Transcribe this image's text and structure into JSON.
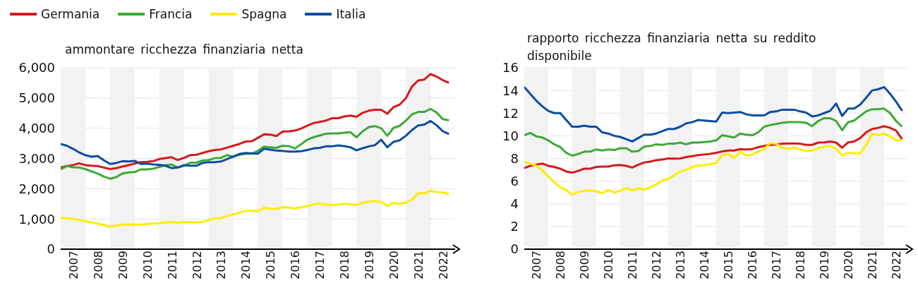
{
  "chart_data": [
    {
      "type": "line",
      "title": "ammontare ricchezza finanziaria netta",
      "legend": "top",
      "grid": "y",
      "x": [
        "2007-01",
        "2007-04",
        "2007-07",
        "2007-10",
        "2008-01",
        "2008-04",
        "2008-07",
        "2008-10",
        "2009-01",
        "2009-04",
        "2009-07",
        "2009-10",
        "2010-01",
        "2010-04",
        "2010-07",
        "2010-10",
        "2011-01",
        "2011-04",
        "2011-07",
        "2011-10",
        "2012-01",
        "2012-04",
        "2012-07",
        "2012-10",
        "2013-01",
        "2013-04",
        "2013-07",
        "2013-10",
        "2014-01",
        "2014-04",
        "2014-07",
        "2014-10",
        "2015-01",
        "2015-04",
        "2015-07",
        "2015-10",
        "2016-01",
        "2016-04",
        "2016-07",
        "2016-10",
        "2017-01",
        "2017-04",
        "2017-07",
        "2017-10",
        "2018-01",
        "2018-04",
        "2018-07",
        "2018-10",
        "2019-01",
        "2019-04",
        "2019-07",
        "2019-10",
        "2020-01",
        "2020-04",
        "2020-07",
        "2020-10",
        "2021-01",
        "2021-04",
        "2021-07",
        "2021-10",
        "2022-01",
        "2022-04",
        "2022-07",
        "2022-10"
      ],
      "xlim": [
        "2007-01",
        "2023-01"
      ],
      "xticks": [
        {
          "value": "2007-07",
          "label": "2007"
        },
        {
          "value": "2008-07",
          "label": "2008"
        },
        {
          "value": "2009-07",
          "label": "2009"
        },
        {
          "value": "2010-07",
          "label": "2010"
        },
        {
          "value": "2011-07",
          "label": "2011"
        },
        {
          "value": "2012-07",
          "label": "2012"
        },
        {
          "value": "2013-07",
          "label": "2013"
        },
        {
          "value": "2014-07",
          "label": "2014"
        },
        {
          "value": "2015-07",
          "label": "2015"
        },
        {
          "value": "2016-07",
          "label": "2016"
        },
        {
          "value": "2017-07",
          "label": "2017"
        },
        {
          "value": "2018-07",
          "label": "2018"
        },
        {
          "value": "2019-07",
          "label": "2019"
        },
        {
          "value": "2020-07",
          "label": "2020"
        },
        {
          "value": "2021-07",
          "label": "2021"
        },
        {
          "value": "2022-07",
          "label": "2022"
        }
      ],
      "ylim": [
        0,
        6000
      ],
      "yticks": [
        0,
        {
          "value": 1000,
          "label": "1,000"
        },
        {
          "value": 2000,
          "label": "2,000"
        },
        {
          "value": 3000,
          "label": "3,000"
        },
        {
          "value": 4000,
          "label": "4,000"
        },
        {
          "value": 5000,
          "label": "5,000"
        },
        {
          "value": 6000,
          "label": "6,000"
        }
      ],
      "bands": [
        {
          "axis": "x",
          "from": "2007-01",
          "to": "2008-01",
          "color": "#f2f2f2"
        },
        {
          "axis": "x",
          "from": "2009-01",
          "to": "2010-01",
          "color": "#f2f2f2"
        },
        {
          "axis": "x",
          "from": "2011-01",
          "to": "2012-01",
          "color": "#f2f2f2"
        },
        {
          "axis": "x",
          "from": "2013-01",
          "to": "2014-01",
          "color": "#f2f2f2"
        },
        {
          "axis": "x",
          "from": "2015-01",
          "to": "2016-01",
          "color": "#f2f2f2"
        },
        {
          "axis": "x",
          "from": "2017-01",
          "to": "2018-01",
          "color": "#f2f2f2"
        },
        {
          "axis": "x",
          "from": "2019-01",
          "to": "2020-01",
          "color": "#f2f2f2"
        },
        {
          "axis": "x",
          "from": "2021-01",
          "to": "2022-01",
          "color": "#f2f2f2"
        }
      ],
      "series": [
        {
          "name": "Germania",
          "color": "#d7191c",
          "values": [
            2700,
            2750,
            2780,
            2840,
            2780,
            2760,
            2750,
            2700,
            2650,
            2680,
            2730,
            2780,
            2830,
            2880,
            2890,
            2910,
            2980,
            3010,
            3040,
            2950,
            3020,
            3110,
            3120,
            3180,
            3240,
            3280,
            3300,
            3360,
            3420,
            3480,
            3560,
            3570,
            3680,
            3800,
            3790,
            3740,
            3890,
            3900,
            3920,
            3990,
            4080,
            4170,
            4210,
            4250,
            4330,
            4330,
            4390,
            4420,
            4380,
            4510,
            4580,
            4610,
            4610,
            4480,
            4700,
            4780,
            4990,
            5380,
            5580,
            5610,
            5790,
            5710,
            5590,
            5500
          ]
        },
        {
          "name": "Francia",
          "color": "#3caa36",
          "values": [
            2640,
            2750,
            2710,
            2700,
            2650,
            2570,
            2500,
            2400,
            2330,
            2380,
            2500,
            2540,
            2550,
            2640,
            2640,
            2660,
            2720,
            2780,
            2800,
            2700,
            2760,
            2860,
            2860,
            2930,
            2950,
            3010,
            3020,
            3110,
            3060,
            3120,
            3150,
            3160,
            3250,
            3390,
            3370,
            3350,
            3420,
            3410,
            3330,
            3470,
            3620,
            3700,
            3760,
            3820,
            3830,
            3830,
            3850,
            3870,
            3700,
            3900,
            4040,
            4070,
            4000,
            3750,
            4010,
            4080,
            4250,
            4460,
            4540,
            4540,
            4640,
            4520,
            4300,
            4260
          ]
        },
        {
          "name": "Spagna",
          "color": "#ffec00",
          "values": [
            1030,
            1030,
            1000,
            970,
            920,
            880,
            840,
            800,
            740,
            780,
            810,
            810,
            810,
            810,
            830,
            850,
            860,
            890,
            900,
            870,
            900,
            900,
            880,
            900,
            960,
            1020,
            1030,
            1100,
            1150,
            1200,
            1270,
            1270,
            1250,
            1370,
            1340,
            1330,
            1390,
            1370,
            1350,
            1390,
            1420,
            1480,
            1510,
            1470,
            1460,
            1470,
            1500,
            1480,
            1460,
            1540,
            1570,
            1600,
            1560,
            1430,
            1530,
            1500,
            1540,
            1640,
            1850,
            1850,
            1930,
            1890,
            1880,
            1820
          ]
        },
        {
          "name": "Italia",
          "color": "#0b4ea2",
          "values": [
            3480,
            3420,
            3320,
            3200,
            3110,
            3060,
            3080,
            2940,
            2820,
            2850,
            2910,
            2900,
            2920,
            2820,
            2830,
            2800,
            2790,
            2760,
            2680,
            2700,
            2780,
            2760,
            2760,
            2850,
            2880,
            2880,
            2900,
            2980,
            3060,
            3150,
            3180,
            3170,
            3160,
            3320,
            3290,
            3260,
            3250,
            3230,
            3230,
            3240,
            3280,
            3330,
            3350,
            3400,
            3400,
            3430,
            3410,
            3370,
            3270,
            3340,
            3400,
            3440,
            3620,
            3370,
            3550,
            3600,
            3750,
            3940,
            4090,
            4120,
            4240,
            4100,
            3900,
            3810
          ]
        }
      ]
    },
    {
      "type": "line",
      "title": "rapporto ricchezza finanziaria netta su reddito disponibile",
      "grid": "y",
      "x": [
        "2007-01",
        "2007-04",
        "2007-07",
        "2007-10",
        "2008-01",
        "2008-04",
        "2008-07",
        "2008-10",
        "2009-01",
        "2009-04",
        "2009-07",
        "2009-10",
        "2010-01",
        "2010-04",
        "2010-07",
        "2010-10",
        "2011-01",
        "2011-04",
        "2011-07",
        "2011-10",
        "2012-01",
        "2012-04",
        "2012-07",
        "2012-10",
        "2013-01",
        "2013-04",
        "2013-07",
        "2013-10",
        "2014-01",
        "2014-04",
        "2014-07",
        "2014-10",
        "2015-01",
        "2015-04",
        "2015-07",
        "2015-10",
        "2016-01",
        "2016-04",
        "2016-07",
        "2016-10",
        "2017-01",
        "2017-04",
        "2017-07",
        "2017-10",
        "2018-01",
        "2018-04",
        "2018-07",
        "2018-10",
        "2019-01",
        "2019-04",
        "2019-07",
        "2019-10",
        "2020-01",
        "2020-04",
        "2020-07",
        "2020-10",
        "2021-01",
        "2021-04",
        "2021-07",
        "2021-10",
        "2022-01",
        "2022-04",
        "2022-07",
        "2022-10"
      ],
      "xlim": [
        "2007-01",
        "2023-01"
      ],
      "xticks": [
        {
          "value": "2007-07",
          "label": "2007"
        },
        {
          "value": "2008-07",
          "label": "2008"
        },
        {
          "value": "2009-07",
          "label": "2009"
        },
        {
          "value": "2010-07",
          "label": "2010"
        },
        {
          "value": "2011-07",
          "label": "2011"
        },
        {
          "value": "2012-07",
          "label": "2012"
        },
        {
          "value": "2013-07",
          "label": "2013"
        },
        {
          "value": "2014-07",
          "label": "2014"
        },
        {
          "value": "2015-07",
          "label": "2015"
        },
        {
          "value": "2016-07",
          "label": "2016"
        },
        {
          "value": "2017-07",
          "label": "2017"
        },
        {
          "value": "2018-07",
          "label": "2018"
        },
        {
          "value": "2019-07",
          "label": "2019"
        },
        {
          "value": "2020-07",
          "label": "2020"
        },
        {
          "value": "2021-07",
          "label": "2021"
        },
        {
          "value": "2022-07",
          "label": "2022"
        }
      ],
      "ylim": [
        0,
        16
      ],
      "yticks": [
        0,
        2,
        4,
        6,
        8,
        10,
        12,
        14,
        16
      ],
      "bands": [
        {
          "axis": "x",
          "from": "2007-01",
          "to": "2008-01",
          "color": "#f2f2f2"
        },
        {
          "axis": "x",
          "from": "2009-01",
          "to": "2010-01",
          "color": "#f2f2f2"
        },
        {
          "axis": "x",
          "from": "2011-01",
          "to": "2012-01",
          "color": "#f2f2f2"
        },
        {
          "axis": "x",
          "from": "2013-01",
          "to": "2014-01",
          "color": "#f2f2f2"
        },
        {
          "axis": "x",
          "from": "2015-01",
          "to": "2016-01",
          "color": "#f2f2f2"
        },
        {
          "axis": "x",
          "from": "2017-01",
          "to": "2018-01",
          "color": "#f2f2f2"
        },
        {
          "axis": "x",
          "from": "2019-01",
          "to": "2020-01",
          "color": "#f2f2f2"
        },
        {
          "axis": "x",
          "from": "2021-01",
          "to": "2022-01",
          "color": "#f2f2f2"
        }
      ],
      "series": [
        {
          "color": "#d7191c",
          "values": [
            7.15,
            7.35,
            7.45,
            7.55,
            7.35,
            7.25,
            7.1,
            6.85,
            6.75,
            6.9,
            7.1,
            7.1,
            7.25,
            7.28,
            7.28,
            7.4,
            7.43,
            7.35,
            7.2,
            7.45,
            7.65,
            7.72,
            7.85,
            7.9,
            8.0,
            7.98,
            8.0,
            8.12,
            8.2,
            8.3,
            8.35,
            8.4,
            8.5,
            8.62,
            8.7,
            8.7,
            8.82,
            8.8,
            8.83,
            9.0,
            9.1,
            9.2,
            9.25,
            9.3,
            9.32,
            9.32,
            9.3,
            9.2,
            9.2,
            9.4,
            9.42,
            9.5,
            9.4,
            8.95,
            9.42,
            9.5,
            9.8,
            10.3,
            10.6,
            10.7,
            10.85,
            10.7,
            10.45,
            9.7
          ]
        },
        {
          "color": "#3caa36",
          "values": [
            10.05,
            10.25,
            9.95,
            9.85,
            9.6,
            9.25,
            9.0,
            8.5,
            8.25,
            8.4,
            8.6,
            8.6,
            8.8,
            8.7,
            8.8,
            8.75,
            8.9,
            8.9,
            8.6,
            8.65,
            9.05,
            9.1,
            9.25,
            9.2,
            9.3,
            9.3,
            9.4,
            9.25,
            9.4,
            9.4,
            9.45,
            9.5,
            9.6,
            10.05,
            9.95,
            9.85,
            10.2,
            10.1,
            10.05,
            10.3,
            10.8,
            10.95,
            11.05,
            11.15,
            11.2,
            11.2,
            11.2,
            11.15,
            10.85,
            11.3,
            11.55,
            11.55,
            11.3,
            10.5,
            11.2,
            11.35,
            11.75,
            12.15,
            12.35,
            12.35,
            12.4,
            12.0,
            11.3,
            10.8
          ]
        },
        {
          "color": "#ffec00",
          "values": [
            7.7,
            7.55,
            7.35,
            6.95,
            6.4,
            5.9,
            5.45,
            5.2,
            4.8,
            5.05,
            5.15,
            5.2,
            5.1,
            4.95,
            5.2,
            5.0,
            5.15,
            5.38,
            5.2,
            5.35,
            5.25,
            5.45,
            5.7,
            6.05,
            6.2,
            6.5,
            6.85,
            7.0,
            7.25,
            7.4,
            7.4,
            7.5,
            7.6,
            8.3,
            8.4,
            8.05,
            8.6,
            8.25,
            8.35,
            8.6,
            8.85,
            9.35,
            9.3,
            8.95,
            8.85,
            8.95,
            8.8,
            8.65,
            8.7,
            8.9,
            9.05,
            9.1,
            8.85,
            8.25,
            8.5,
            8.45,
            8.45,
            9.2,
            10.2,
            10.05,
            10.2,
            9.95,
            9.6,
            9.6
          ]
        },
        {
          "color": "#0b4ea2",
          "values": [
            14.3,
            13.7,
            13.1,
            12.6,
            12.2,
            12.0,
            12.0,
            11.4,
            10.8,
            10.8,
            10.9,
            10.8,
            10.8,
            10.3,
            10.2,
            10.0,
            9.9,
            9.7,
            9.5,
            9.8,
            10.1,
            10.1,
            10.2,
            10.4,
            10.6,
            10.6,
            10.8,
            11.1,
            11.2,
            11.4,
            11.35,
            11.3,
            11.25,
            12.05,
            12.0,
            12.05,
            12.1,
            11.9,
            11.8,
            11.8,
            11.8,
            12.1,
            12.15,
            12.3,
            12.3,
            12.3,
            12.15,
            12.05,
            11.7,
            11.8,
            12.0,
            12.2,
            12.85,
            11.75,
            12.4,
            12.4,
            12.75,
            13.35,
            14.0,
            14.1,
            14.3,
            13.7,
            13.0,
            12.2
          ]
        }
      ]
    }
  ]
}
